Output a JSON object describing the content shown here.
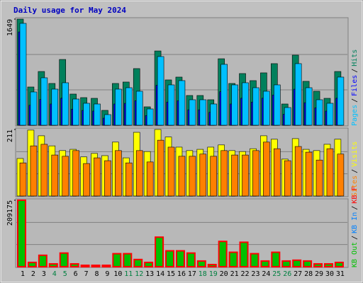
{
  "chart_data": {
    "type": "bar",
    "title": "Daily usage for May 2024",
    "categories": [
      "1",
      "2",
      "3",
      "4",
      "5",
      "6",
      "7",
      "8",
      "9",
      "10",
      "11",
      "12",
      "13",
      "14",
      "15",
      "16",
      "17",
      "18",
      "19",
      "20",
      "21",
      "22",
      "23",
      "24",
      "25",
      "26",
      "27",
      "28",
      "29",
      "30",
      "31"
    ],
    "category_color": "#000000",
    "highlight": [
      3,
      4,
      10,
      11,
      17,
      18,
      24,
      25
    ],
    "highlight_color": "#008040",
    "legend_separator": "/",
    "panels": [
      {
        "ylim": [
          0,
          1649
        ],
        "yticks": [
          1649
        ],
        "series": [
          {
            "name": "Hits",
            "color": "#00805c",
            "values": [
              1649,
              594,
              835,
              649,
              1022,
              484,
              429,
              418,
              231,
              649,
              671,
              880,
              286,
              1154,
              704,
              748,
              462,
              462,
              396,
              1033,
              649,
              803,
              693,
              814,
              957,
              330,
              1089,
              682,
              528,
              418,
              835
            ]
          },
          {
            "name": "Files",
            "color": "#0000ff",
            "values": [
              1450,
              310,
              400,
              330,
              420,
              250,
              230,
              220,
              110,
              330,
              340,
              380,
              150,
              620,
              360,
              380,
              240,
              240,
              200,
              520,
              330,
              420,
              360,
              420,
              470,
              170,
              560,
              350,
              270,
              220,
              420
            ]
          },
          {
            "name": "Pages",
            "color": "#00c0ff",
            "values": [
              1583,
              517,
              737,
              561,
              660,
              407,
              341,
              330,
              165,
              561,
              583,
              528,
              253,
              1067,
              627,
              693,
              396,
              396,
              330,
              946,
              627,
              660,
              583,
              528,
              627,
              275,
              957,
              583,
              396,
              341,
              748
            ]
          }
        ],
        "legend_order": [
          2,
          1,
          0
        ]
      },
      {
        "ylim": [
          0,
          211
        ],
        "yticks": [
          211
        ],
        "series": [
          {
            "name": "Visits",
            "color": "#ffff00",
            "values": [
              119,
              209,
              191,
              159,
              144,
              148,
              124,
              135,
              128,
              171,
              121,
              202,
              141,
              211,
              187,
              155,
              144,
              148,
              155,
              162,
              144,
              141,
              150,
              191,
              180,
              117,
              182,
              148,
              144,
              164,
              180
            ]
          },
          {
            "name": "Sites",
            "color": "#ff8000",
            "values": [
              105,
              159,
              164,
              130,
              126,
              144,
              103,
              121,
              112,
              144,
              105,
              144,
              108,
              177,
              155,
              126,
              126,
              133,
              126,
              144,
              130,
              130,
              144,
              171,
              150,
              112,
              157,
              139,
              114,
              150,
              133
            ]
          }
        ],
        "legend_order": [
          1,
          0
        ]
      },
      {
        "ylim": [
          0,
          209175
        ],
        "yticks": [
          209175
        ],
        "series": [
          {
            "name": "KB F",
            "color": "#00c000",
            "stroke": "#ff0000",
            "values": [
              209175,
              13600,
              36000,
              9000,
              43000,
              9000,
              4500,
              4500,
              4500,
              41000,
              41000,
              22700,
              13600,
              93000,
              50000,
              50000,
              43000,
              18000,
              6800,
              79600,
              45500,
              77000,
              41000,
              18000,
              45500,
              18000,
              20500,
              18000,
              9000,
              9000,
              13600
            ]
          }
        ],
        "legend": [
          {
            "text": "KB Out",
            "color": "#00c000"
          },
          {
            "text": "KB In",
            "color": "#0080ff"
          },
          {
            "text": "KB F",
            "color": "#ff0000"
          }
        ]
      }
    ]
  }
}
